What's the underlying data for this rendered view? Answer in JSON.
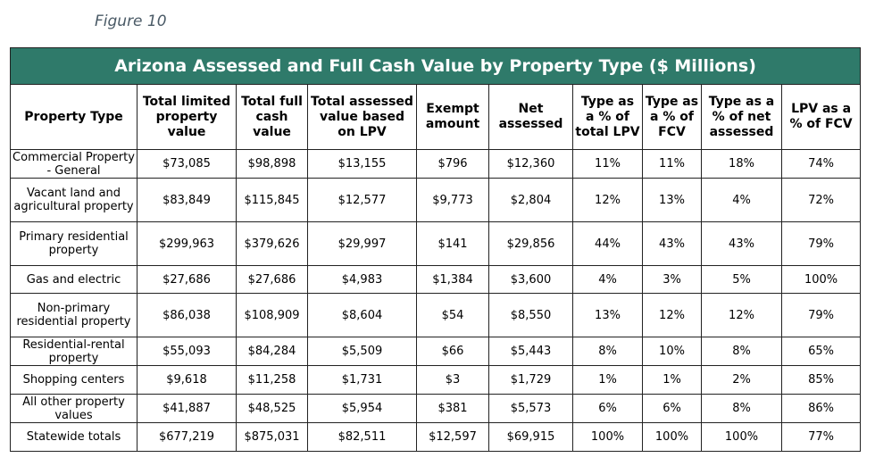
{
  "figure_label": "Figure 10",
  "table": {
    "title": "Arizona Assessed and Full Cash Value by Property Type ($ Millions)",
    "headers": [
      "Property Type",
      "Total limited property value",
      "Total full cash value",
      "Total assessed value based on LPV",
      "Exempt amount",
      "Net assessed",
      "Type as a % of total LPV",
      "Type as a % of FCV",
      "Type as a % of net assessed",
      "LPV as a % of FCV"
    ],
    "rows": [
      [
        "Commercial Property - General",
        "$73,085",
        "$98,898",
        "$13,155",
        "$796",
        "$12,360",
        "11%",
        "11%",
        "18%",
        "74%"
      ],
      [
        "Vacant land and agricultural property",
        "$83,849",
        "$115,845",
        "$12,577",
        "$9,773",
        "$2,804",
        "12%",
        "13%",
        "4%",
        "72%"
      ],
      [
        "Primary residential property",
        "$299,963",
        "$379,626",
        "$29,997",
        "$141",
        "$29,856",
        "44%",
        "43%",
        "43%",
        "79%"
      ],
      [
        "Gas and electric",
        "$27,686",
        "$27,686",
        "$4,983",
        "$1,384",
        "$3,600",
        "4%",
        "3%",
        "5%",
        "100%"
      ],
      [
        "Non-primary residential property",
        "$86,038",
        "$108,909",
        "$8,604",
        "$54",
        "$8,550",
        "13%",
        "12%",
        "12%",
        "79%"
      ],
      [
        "Residential-rental property",
        "$55,093",
        "$84,284",
        "$5,509",
        "$66",
        "$5,443",
        "8%",
        "10%",
        "8%",
        "65%"
      ],
      [
        "Shopping centers",
        "$9,618",
        "$11,258",
        "$1,731",
        "$3",
        "$1,729",
        "1%",
        "1%",
        "2%",
        "85%"
      ],
      [
        "All other property values",
        "$41,887",
        "$48,525",
        "$5,954",
        "$381",
        "$5,573",
        "6%",
        "6%",
        "8%",
        "86%"
      ],
      [
        "Statewide totals",
        "$677,219",
        "$875,031",
        "$82,511",
        "$12,597",
        "$69,915",
        "100%",
        "100%",
        "100%",
        "77%"
      ]
    ]
  }
}
